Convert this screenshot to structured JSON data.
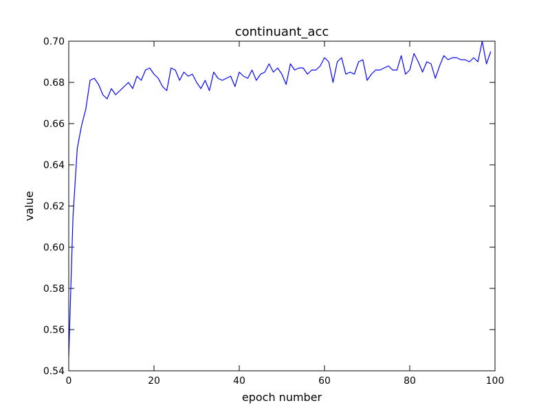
{
  "chart_data": {
    "type": "line",
    "title": "continuant_acc",
    "xlabel": "epoch number",
    "ylabel": "value",
    "xlim": [
      0,
      100
    ],
    "ylim": [
      0.54,
      0.7
    ],
    "x_ticks": [
      0,
      20,
      40,
      60,
      80,
      100
    ],
    "x_tick_labels": [
      "0",
      "20",
      "40",
      "60",
      "80",
      "100"
    ],
    "y_ticks": [
      0.54,
      0.56,
      0.58,
      0.6,
      0.62,
      0.64,
      0.66,
      0.68,
      0.7
    ],
    "y_tick_labels": [
      "0.54",
      "0.56",
      "0.58",
      "0.60",
      "0.62",
      "0.64",
      "0.66",
      "0.68",
      "0.70"
    ],
    "grid": false,
    "series": [
      {
        "color": "#0000ff",
        "x": [
          0,
          1,
          2,
          3,
          4,
          5,
          6,
          7,
          8,
          9,
          10,
          11,
          12,
          13,
          14,
          15,
          16,
          17,
          18,
          19,
          20,
          21,
          22,
          23,
          24,
          25,
          26,
          27,
          28,
          29,
          30,
          31,
          32,
          33,
          34,
          35,
          36,
          37,
          38,
          39,
          40,
          41,
          42,
          43,
          44,
          45,
          46,
          47,
          48,
          49,
          50,
          51,
          52,
          53,
          54,
          55,
          56,
          57,
          58,
          59,
          60,
          61,
          62,
          63,
          64,
          65,
          66,
          67,
          68,
          69,
          70,
          71,
          72,
          73,
          74,
          75,
          76,
          77,
          78,
          79,
          80,
          81,
          82,
          83,
          84,
          85,
          86,
          87,
          88,
          89,
          90,
          91,
          92,
          93,
          94,
          95,
          96,
          97,
          98,
          99
        ],
        "values": [
          0.547,
          0.615,
          0.648,
          0.659,
          0.667,
          0.681,
          0.682,
          0.679,
          0.674,
          0.672,
          0.677,
          0.674,
          0.676,
          0.678,
          0.68,
          0.677,
          0.683,
          0.681,
          0.686,
          0.687,
          0.684,
          0.682,
          0.678,
          0.676,
          0.687,
          0.686,
          0.681,
          0.685,
          0.683,
          0.684,
          0.68,
          0.677,
          0.681,
          0.676,
          0.685,
          0.682,
          0.681,
          0.682,
          0.683,
          0.678,
          0.685,
          0.683,
          0.682,
          0.686,
          0.681,
          0.684,
          0.685,
          0.689,
          0.685,
          0.687,
          0.684,
          0.679,
          0.689,
          0.686,
          0.687,
          0.687,
          0.684,
          0.686,
          0.686,
          0.688,
          0.692,
          0.69,
          0.68,
          0.69,
          0.692,
          0.684,
          0.685,
          0.684,
          0.69,
          0.691,
          0.681,
          0.684,
          0.686,
          0.686,
          0.687,
          0.688,
          0.686,
          0.686,
          0.693,
          0.684,
          0.686,
          0.694,
          0.69,
          0.685,
          0.69,
          0.689,
          0.682,
          0.688,
          0.693,
          0.691,
          0.692,
          0.692,
          0.691,
          0.691,
          0.69,
          0.692,
          0.69,
          0.7,
          0.689,
          0.695
        ]
      }
    ]
  }
}
